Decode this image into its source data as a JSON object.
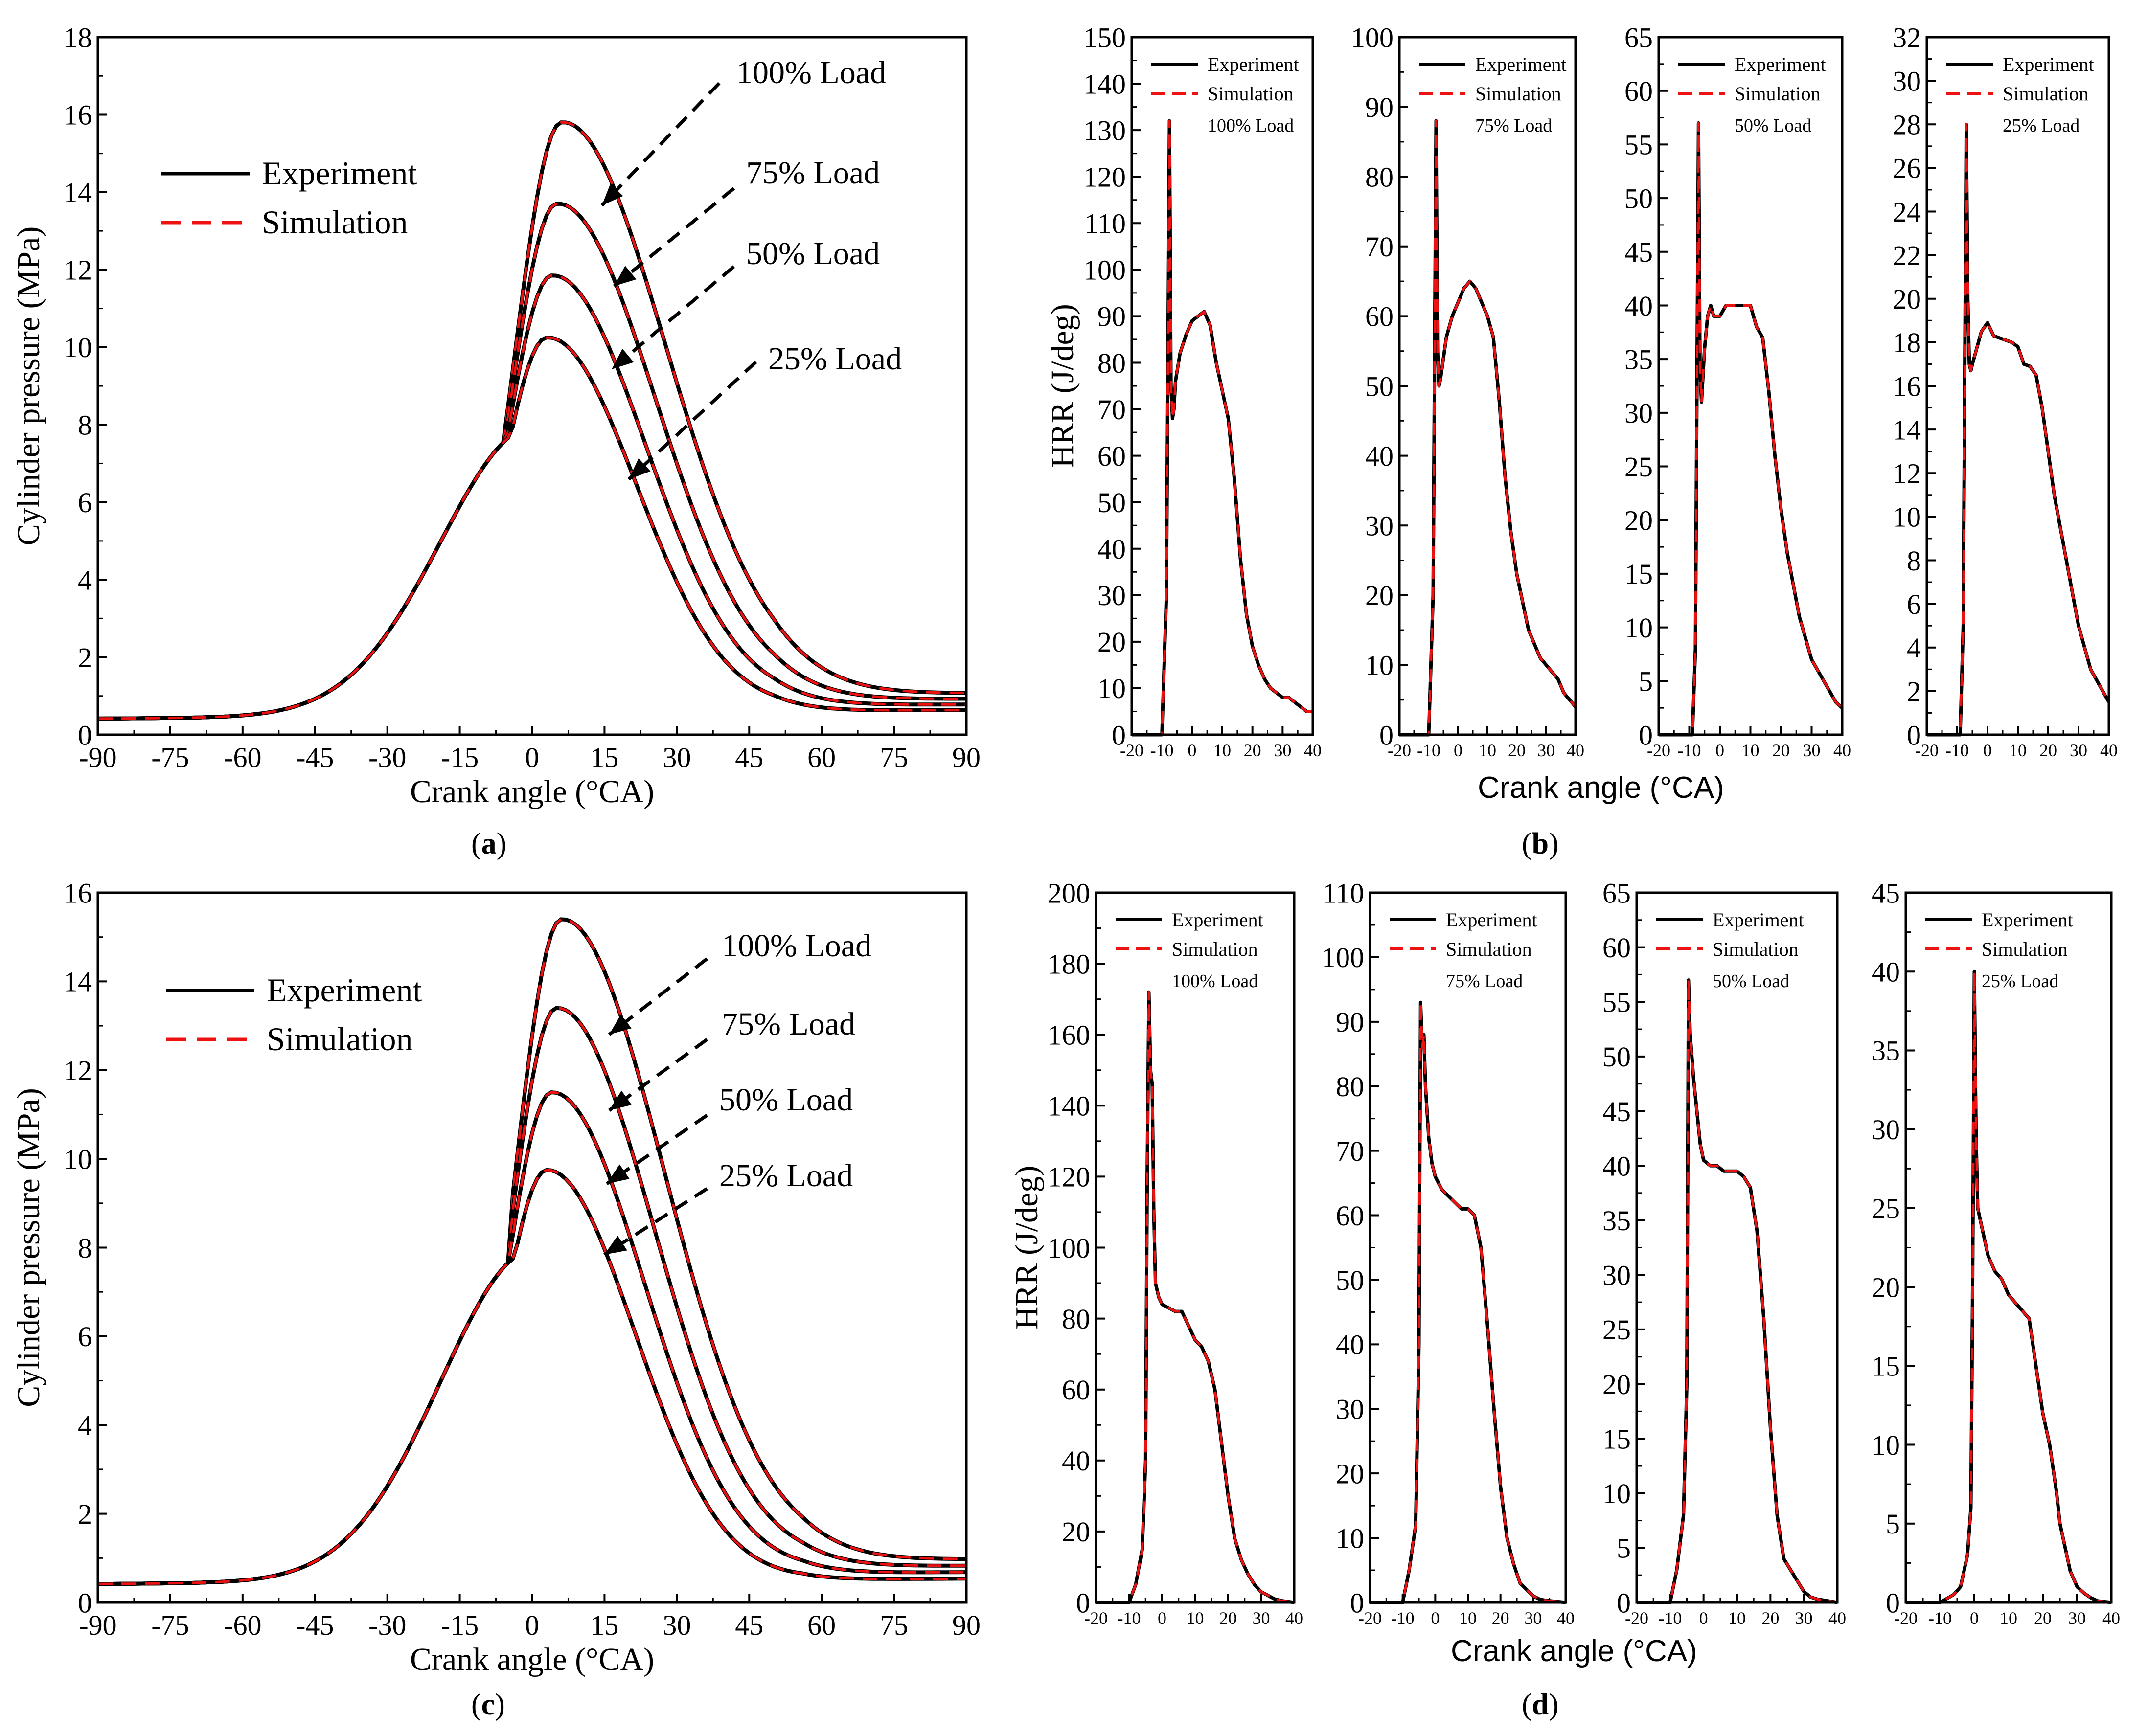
{
  "colors": {
    "experiment": "#000000",
    "simulation": "#ee1111",
    "axis": "#000000"
  },
  "panel_labels": {
    "a": "a",
    "b": "b",
    "c": "c",
    "d": "d"
  },
  "shared_labels": {
    "b_xlabel": "Crank angle (°CA)",
    "d_xlabel": "Crank angle (°CA)"
  },
  "chart_data": [
    {
      "id": "a",
      "type": "line",
      "xlabel": "Crank angle (°CA)",
      "ylabel": "Cylinder pressure (MPa)",
      "xlim": [
        -90,
        90
      ],
      "ylim": [
        0,
        18
      ],
      "xticks": [
        -90,
        -75,
        -60,
        -45,
        -30,
        -15,
        0,
        15,
        30,
        45,
        60,
        75,
        90
      ],
      "xtick_labels": [
        "-90",
        "-75",
        "-60",
        "-45",
        "-30",
        "-15",
        "0",
        "15",
        "30",
        "45",
        "60",
        "75",
        "90"
      ],
      "yticks": [
        0,
        2,
        4,
        6,
        8,
        10,
        12,
        14,
        16,
        18
      ],
      "legend": {
        "position": "top-left",
        "entries": [
          "Experiment",
          "Simulation"
        ]
      },
      "series": [
        {
          "name": "100% Load",
          "peak": 15.8,
          "peak_x": 6,
          "soc": -10
        },
        {
          "name": "75% Load",
          "peak": 13.7,
          "peak_x": 5,
          "soc": -10
        },
        {
          "name": "50% Load",
          "peak": 11.85,
          "peak_x": 4,
          "soc": -10
        },
        {
          "name": "25% Load",
          "peak": 10.25,
          "peak_x": 3,
          "soc": -10
        }
      ],
      "annotations": [
        "100% Load",
        "75% Load",
        "50% Load",
        "25% Load"
      ],
      "end_values_at_90": [
        1.1,
        0.95,
        0.8,
        0.65
      ],
      "start_value_at_minus90": 0.4
    },
    {
      "id": "b1",
      "type": "line",
      "ylabel": "HRR (J/deg)",
      "xlim": [
        -20,
        40
      ],
      "ylim": [
        0,
        150
      ],
      "xticks": [
        -20,
        -10,
        0,
        10,
        20,
        30,
        40
      ],
      "xtick_labels": [
        "-20",
        "-10",
        "0",
        "10",
        "20",
        "30",
        "40"
      ],
      "yticks": [
        0,
        10,
        20,
        30,
        40,
        50,
        60,
        70,
        80,
        90,
        100,
        110,
        120,
        130,
        140,
        150
      ],
      "legend_entries": [
        "Experiment",
        "Simulation"
      ],
      "annotation": "100% Load",
      "x": [
        -20,
        -10,
        -8.5,
        -7.5,
        -7,
        -6.5,
        -6,
        -5.5,
        -4,
        -2,
        0,
        2,
        4,
        6,
        8,
        10,
        12,
        14,
        16,
        18,
        20,
        22,
        24,
        26,
        28,
        30,
        32,
        34,
        36,
        38,
        40
      ],
      "y": [
        0,
        0,
        30,
        132,
        75,
        68,
        70,
        76,
        82,
        86,
        89,
        90,
        91,
        88,
        80,
        74,
        68,
        55,
        38,
        26,
        19,
        15,
        12,
        10,
        9,
        8,
        8,
        7,
        6,
        5,
        5
      ]
    },
    {
      "id": "b2",
      "type": "line",
      "xlim": [
        -20,
        40
      ],
      "ylim": [
        0,
        100
      ],
      "xticks": [
        -20,
        -10,
        0,
        10,
        20,
        30,
        40
      ],
      "xtick_labels": [
        "-20",
        "-10",
        "0",
        "10",
        "20",
        "30",
        "40"
      ],
      "yticks": [
        0,
        10,
        20,
        30,
        40,
        50,
        60,
        70,
        80,
        90,
        100
      ],
      "legend_entries": [
        "Experiment",
        "Simulation"
      ],
      "annotation": "75% Load",
      "x": [
        -20,
        -10,
        -8.5,
        -7.5,
        -7,
        -6.5,
        -6,
        -5,
        -4,
        -2,
        0,
        2,
        4,
        6,
        8,
        10,
        12,
        14,
        16,
        18,
        20,
        22,
        24,
        26,
        28,
        30,
        32,
        34,
        36,
        38,
        40
      ],
      "y": [
        0,
        0,
        20,
        88,
        55,
        50,
        51,
        54,
        57,
        60,
        62,
        64,
        65,
        64,
        62,
        60,
        57,
        48,
        37,
        29,
        23,
        19,
        15,
        13,
        11,
        10,
        9,
        8,
        6,
        5,
        4
      ]
    },
    {
      "id": "b3",
      "type": "line",
      "xlim": [
        -20,
        40
      ],
      "ylim": [
        0,
        65
      ],
      "xticks": [
        -20,
        -10,
        0,
        10,
        20,
        30,
        40
      ],
      "xtick_labels": [
        "-20",
        "-10",
        "0",
        "10",
        "20",
        "30",
        "40"
      ],
      "yticks": [
        0,
        5,
        10,
        15,
        20,
        25,
        30,
        35,
        40,
        45,
        50,
        55,
        60,
        65
      ],
      "legend_entries": [
        "Experiment",
        "Simulation"
      ],
      "annotation": "50% Load",
      "x": [
        -20,
        -9,
        -8,
        -7,
        -6.5,
        -6,
        -5,
        -4,
        -3,
        -2,
        0,
        2,
        4,
        6,
        8,
        10,
        12,
        14,
        16,
        18,
        20,
        22,
        24,
        26,
        28,
        30,
        32,
        34,
        36,
        38,
        40
      ],
      "y": [
        0,
        0,
        8,
        57,
        34,
        31,
        36,
        39,
        40,
        39,
        39,
        40,
        40,
        40,
        40,
        40,
        38,
        37,
        32,
        26,
        21,
        17,
        14,
        11,
        9,
        7,
        6,
        5,
        4,
        3,
        2.5
      ]
    },
    {
      "id": "b4",
      "type": "line",
      "xlim": [
        -20,
        40
      ],
      "ylim": [
        0,
        32
      ],
      "xticks": [
        -20,
        -10,
        0,
        10,
        20,
        30,
        40
      ],
      "xtick_labels": [
        "-20",
        "-10",
        "0",
        "10",
        "20",
        "30",
        "40"
      ],
      "yticks": [
        0,
        2,
        4,
        6,
        8,
        10,
        12,
        14,
        16,
        18,
        20,
        22,
        24,
        26,
        28,
        30,
        32
      ],
      "legend_entries": [
        "Experiment",
        "Simulation"
      ],
      "annotation": "25% Load",
      "x": [
        -20,
        -9,
        -8,
        -7,
        -6.5,
        -6,
        -5.5,
        -5,
        -4,
        -2,
        0,
        2,
        4,
        6,
        8,
        10,
        12,
        14,
        16,
        18,
        20,
        22,
        24,
        26,
        28,
        30,
        32,
        34,
        36,
        38,
        40
      ],
      "y": [
        0,
        0,
        5,
        28,
        20,
        17,
        16.7,
        17,
        17.5,
        18.5,
        18.9,
        18.3,
        18.2,
        18.1,
        18,
        17.8,
        17,
        16.9,
        16.5,
        15,
        13,
        11,
        9.5,
        8,
        6.5,
        5,
        4,
        3,
        2.5,
        2,
        1.5
      ]
    },
    {
      "id": "c",
      "type": "line",
      "xlabel": "Crank angle (°CA)",
      "ylabel": "Cylinder pressure (MPa)",
      "xlim": [
        -90,
        90
      ],
      "ylim": [
        0,
        16
      ],
      "xticks": [
        -90,
        -75,
        -60,
        -45,
        -30,
        -15,
        0,
        15,
        30,
        45,
        60,
        75,
        90
      ],
      "xtick_labels": [
        "-90",
        "-75",
        "-60",
        "-45",
        "-30",
        "-15",
        "0",
        "15",
        "30",
        "45",
        "60",
        "75",
        "90"
      ],
      "yticks": [
        0,
        2,
        4,
        6,
        8,
        10,
        12,
        14,
        16
      ],
      "legend": {
        "position": "top-left",
        "entries": [
          "Experiment",
          "Simulation"
        ]
      },
      "series": [
        {
          "name": "100% Load",
          "peak": 15.4,
          "peak_x": 6,
          "soc": -4
        },
        {
          "name": "75% Load",
          "peak": 13.4,
          "peak_x": 5,
          "soc": -4
        },
        {
          "name": "50% Load",
          "peak": 11.5,
          "peak_x": 4,
          "soc": -4
        },
        {
          "name": "25% Load",
          "peak": 9.75,
          "peak_x": 3,
          "soc": -4
        }
      ],
      "annotations": [
        "100% Load",
        "75% Load",
        "50% Load",
        "25% Load"
      ],
      "end_values_at_90": [
        1.0,
        0.85,
        0.7,
        0.55
      ],
      "start_value_at_minus90": 0.4
    },
    {
      "id": "d1",
      "type": "line",
      "ylabel": "HRR (J/deg)",
      "xlim": [
        -20,
        40
      ],
      "ylim": [
        0,
        200
      ],
      "xticks": [
        -20,
        -10,
        0,
        10,
        20,
        30,
        40
      ],
      "xtick_labels": [
        "-20",
        "-10",
        "0",
        "10",
        "20",
        "30",
        "40"
      ],
      "yticks": [
        0,
        20,
        40,
        60,
        80,
        100,
        120,
        140,
        160,
        180,
        200
      ],
      "legend_entries": [
        "Experiment",
        "Simulation"
      ],
      "annotation": "100% Load",
      "x": [
        -20,
        -10,
        -8,
        -6,
        -5,
        -4.5,
        -4,
        -3.5,
        -3,
        -2.5,
        -2,
        -1,
        0,
        2,
        4,
        6,
        8,
        10,
        12,
        14,
        16,
        18,
        20,
        22,
        24,
        26,
        28,
        30,
        32,
        34,
        36,
        40
      ],
      "y": [
        0,
        0,
        5,
        15,
        40,
        120,
        172,
        150,
        146,
        110,
        90,
        86,
        84,
        83,
        82,
        82,
        78,
        74,
        72,
        68,
        60,
        45,
        30,
        18,
        12,
        8,
        5,
        3,
        2,
        1,
        0.5,
        0
      ]
    },
    {
      "id": "d2",
      "type": "line",
      "xlim": [
        -20,
        40
      ],
      "ylim": [
        0,
        110
      ],
      "xticks": [
        -20,
        -10,
        0,
        10,
        20,
        30,
        40
      ],
      "xtick_labels": [
        "-20",
        "-10",
        "0",
        "10",
        "20",
        "30",
        "40"
      ],
      "yticks": [
        0,
        10,
        20,
        30,
        40,
        50,
        60,
        70,
        80,
        90,
        100,
        110
      ],
      "legend_entries": [
        "Experiment",
        "Simulation"
      ],
      "annotation": "75% Load",
      "x": [
        -20,
        -10,
        -8,
        -6,
        -5,
        -4.5,
        -4,
        -3.5,
        -3,
        -2,
        -1,
        0,
        2,
        4,
        6,
        8,
        10,
        12,
        14,
        16,
        18,
        20,
        22,
        24,
        26,
        28,
        30,
        32,
        34,
        36,
        40
      ],
      "y": [
        0,
        0,
        5,
        12,
        40,
        93,
        86,
        88,
        80,
        72,
        68,
        66,
        64,
        63,
        62,
        61,
        61,
        60,
        55,
        43,
        30,
        18,
        10,
        6,
        3,
        2,
        1,
        0.5,
        0.3,
        0.2,
        0
      ]
    },
    {
      "id": "d3",
      "type": "line",
      "xlim": [
        -20,
        40
      ],
      "ylim": [
        0,
        65
      ],
      "xticks": [
        -20,
        -10,
        0,
        10,
        20,
        30,
        40
      ],
      "xtick_labels": [
        "-20",
        "-10",
        "0",
        "10",
        "20",
        "30",
        "40"
      ],
      "yticks": [
        0,
        5,
        10,
        15,
        20,
        25,
        30,
        35,
        40,
        45,
        50,
        55,
        60,
        65
      ],
      "legend_entries": [
        "Experiment",
        "Simulation"
      ],
      "annotation": "50% Load",
      "x": [
        -20,
        -10,
        -8,
        -6,
        -5,
        -4.5,
        -4,
        -3.5,
        -3,
        -2,
        -1,
        0,
        2,
        4,
        6,
        8,
        10,
        12,
        14,
        16,
        18,
        20,
        22,
        24,
        26,
        28,
        30,
        32,
        34,
        36,
        40
      ],
      "y": [
        0,
        0,
        3,
        8,
        20,
        57,
        52,
        50,
        48,
        45,
        42,
        40.5,
        40,
        40,
        39.5,
        39.5,
        39.5,
        39,
        38,
        34,
        26,
        16,
        8,
        4,
        3,
        2,
        1,
        0.5,
        0.3,
        0.2,
        0
      ]
    },
    {
      "id": "d4",
      "type": "line",
      "xlim": [
        -20,
        40
      ],
      "ylim": [
        0,
        45
      ],
      "xticks": [
        -20,
        -10,
        0,
        10,
        20,
        30,
        40
      ],
      "xtick_labels": [
        "-20",
        "-10",
        "0",
        "10",
        "20",
        "30",
        "40"
      ],
      "yticks": [
        0,
        5,
        10,
        15,
        20,
        25,
        30,
        35,
        40,
        45
      ],
      "legend_entries": [
        "Experiment",
        "Simulation"
      ],
      "annotation": "25% Load",
      "x": [
        -20,
        -10,
        -6,
        -4,
        -2,
        -1,
        -0.5,
        0,
        0.5,
        1,
        2,
        4,
        6,
        8,
        10,
        12,
        14,
        16,
        18,
        20,
        22,
        24,
        25,
        26,
        28,
        30,
        32,
        34,
        36,
        40
      ],
      "y": [
        0,
        0,
        0.5,
        1,
        3,
        6,
        20,
        40,
        30,
        25,
        24,
        22,
        21,
        20.5,
        19.5,
        19,
        18.5,
        18,
        15,
        12,
        10,
        7,
        5,
        4,
        2,
        1,
        0.6,
        0.3,
        0.1,
        0
      ]
    }
  ]
}
